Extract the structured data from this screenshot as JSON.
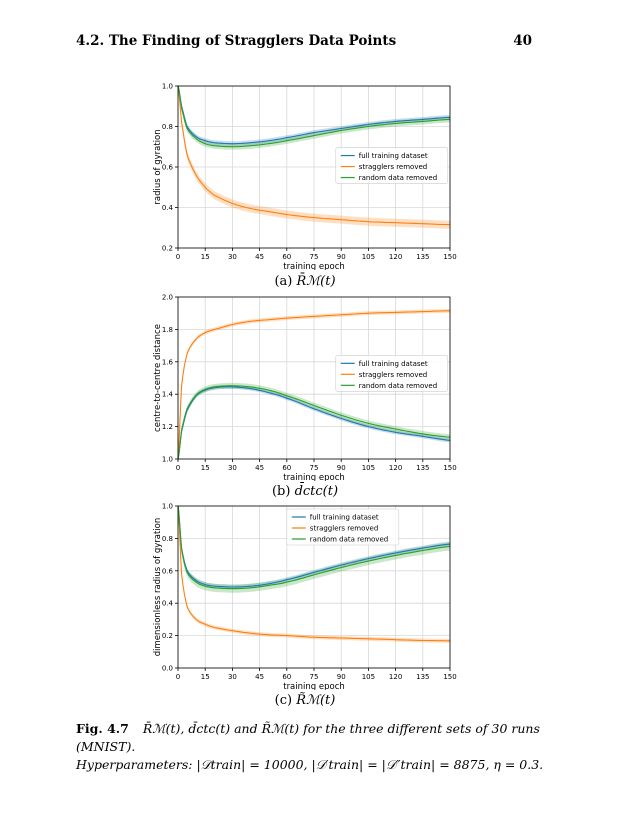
{
  "header": {
    "section": "4.2.   The Finding of Stragglers Data Points",
    "page": "40"
  },
  "colors": {
    "full": "#1f77b4",
    "stragglers": "#ff7f0e",
    "random": "#2ca02c"
  },
  "charts": [
    {
      "id": "a",
      "caption_math": "R̄ℳ(t)",
      "caption_label": "(a)",
      "chart_data": {
        "type": "line",
        "xlabel": "training epoch",
        "ylabel": "radius of gyration",
        "xlim": [
          0,
          150
        ],
        "ylim": [
          0.2,
          1.0
        ],
        "xticks": [
          0,
          15,
          30,
          45,
          60,
          75,
          90,
          105,
          120,
          135,
          150
        ],
        "yticks": [
          0.2,
          0.4,
          0.6,
          0.8,
          1.0
        ],
        "ytick_labels": [
          "0.2",
          "0.4",
          "0.6",
          "0.8",
          "1.0"
        ],
        "legend": "center-right",
        "series": [
          {
            "name": "full training dataset",
            "color": "#1f77b4",
            "x": [
              0,
              2,
              5,
              10,
              15,
              20,
              30,
              40,
              50,
              60,
              75,
              90,
              105,
              120,
              135,
              150
            ],
            "y": [
              1.0,
              0.9,
              0.8,
              0.75,
              0.73,
              0.72,
              0.715,
              0.72,
              0.73,
              0.745,
              0.77,
              0.79,
              0.81,
              0.825,
              0.835,
              0.845
            ],
            "band": 0.012
          },
          {
            "name": "stragglers removed",
            "color": "#ff7f0e",
            "x": [
              0,
              2,
              5,
              10,
              15,
              20,
              30,
              40,
              50,
              60,
              75,
              90,
              105,
              120,
              135,
              150
            ],
            "y": [
              1.0,
              0.82,
              0.66,
              0.56,
              0.5,
              0.46,
              0.42,
              0.395,
              0.38,
              0.365,
              0.35,
              0.34,
              0.33,
              0.325,
              0.32,
              0.315
            ],
            "band": 0.02
          },
          {
            "name": "random data removed",
            "color": "#2ca02c",
            "x": [
              0,
              2,
              5,
              10,
              15,
              20,
              30,
              40,
              50,
              60,
              75,
              90,
              105,
              120,
              135,
              150
            ],
            "y": [
              1.0,
              0.89,
              0.79,
              0.74,
              0.715,
              0.705,
              0.7,
              0.705,
              0.715,
              0.73,
              0.755,
              0.78,
              0.8,
              0.815,
              0.825,
              0.835
            ],
            "band": 0.015
          }
        ]
      }
    },
    {
      "id": "b",
      "caption_math": "d̄ctc(t)",
      "caption_label": "(b)",
      "chart_data": {
        "type": "line",
        "xlabel": "training epoch",
        "ylabel": "centre-to-centre distance",
        "xlim": [
          0,
          150
        ],
        "ylim": [
          1.0,
          2.0
        ],
        "xticks": [
          0,
          15,
          30,
          45,
          60,
          75,
          90,
          105,
          120,
          135,
          150
        ],
        "yticks": [
          1.0,
          1.2,
          1.4,
          1.6,
          1.8,
          2.0
        ],
        "ytick_labels": [
          "1.0",
          "1.2",
          "1.4",
          "1.6",
          "1.8",
          "2.0"
        ],
        "legend": "center-right",
        "series": [
          {
            "name": "full training dataset",
            "color": "#1f77b4",
            "x": [
              0,
              2,
              5,
              10,
              15,
              20,
              25,
              30,
              40,
              50,
              60,
              75,
              90,
              105,
              120,
              135,
              150
            ],
            "y": [
              1.0,
              1.17,
              1.3,
              1.39,
              1.425,
              1.44,
              1.445,
              1.445,
              1.435,
              1.41,
              1.375,
              1.31,
              1.25,
              1.2,
              1.165,
              1.14,
              1.115
            ],
            "band": 0.012
          },
          {
            "name": "stragglers removed",
            "color": "#ff7f0e",
            "x": [
              0,
              2,
              5,
              10,
              15,
              20,
              30,
              40,
              50,
              60,
              75,
              90,
              105,
              120,
              135,
              150
            ],
            "y": [
              1.0,
              1.45,
              1.65,
              1.74,
              1.78,
              1.8,
              1.83,
              1.85,
              1.86,
              1.87,
              1.88,
              1.89,
              1.9,
              1.905,
              1.91,
              1.915
            ],
            "band": 0.012
          },
          {
            "name": "random data removed",
            "color": "#2ca02c",
            "x": [
              0,
              2,
              5,
              10,
              15,
              20,
              25,
              30,
              40,
              50,
              60,
              75,
              90,
              105,
              120,
              135,
              150
            ],
            "y": [
              1.0,
              1.18,
              1.31,
              1.395,
              1.43,
              1.445,
              1.45,
              1.452,
              1.445,
              1.425,
              1.39,
              1.33,
              1.27,
              1.22,
              1.185,
              1.155,
              1.135
            ],
            "band": 0.018
          }
        ]
      }
    },
    {
      "id": "c",
      "caption_math": "R̃ℳ(t)",
      "caption_label": "(c)",
      "chart_data": {
        "type": "line",
        "xlabel": "training epoch",
        "ylabel": "dimensionless radius of gyration",
        "xlim": [
          0,
          150
        ],
        "ylim": [
          0.0,
          1.0
        ],
        "xticks": [
          0,
          15,
          30,
          45,
          60,
          75,
          90,
          105,
          120,
          135,
          150
        ],
        "yticks": [
          0.0,
          0.2,
          0.4,
          0.6,
          0.8,
          1.0
        ],
        "ytick_labels": [
          "0.0",
          "0.2",
          "0.4",
          "0.6",
          "0.8",
          "1.0"
        ],
        "legend": "top-center",
        "series": [
          {
            "name": "full training dataset",
            "color": "#1f77b4",
            "x": [
              0,
              2,
              5,
              10,
              15,
              20,
              30,
              40,
              50,
              60,
              75,
              90,
              105,
              120,
              135,
              150
            ],
            "y": [
              1.0,
              0.74,
              0.6,
              0.54,
              0.515,
              0.505,
              0.5,
              0.505,
              0.52,
              0.545,
              0.59,
              0.635,
              0.675,
              0.71,
              0.74,
              0.765
            ],
            "band": 0.015
          },
          {
            "name": "stragglers removed",
            "color": "#ff7f0e",
            "x": [
              0,
              2,
              5,
              10,
              15,
              20,
              30,
              40,
              50,
              60,
              75,
              90,
              105,
              120,
              135,
              150
            ],
            "y": [
              1.0,
              0.58,
              0.38,
              0.3,
              0.27,
              0.25,
              0.23,
              0.215,
              0.205,
              0.2,
              0.19,
              0.185,
              0.18,
              0.175,
              0.17,
              0.168
            ],
            "band": 0.012
          },
          {
            "name": "random data removed",
            "color": "#2ca02c",
            "x": [
              0,
              2,
              5,
              10,
              15,
              20,
              30,
              40,
              50,
              60,
              75,
              90,
              105,
              120,
              135,
              150
            ],
            "y": [
              1.0,
              0.73,
              0.59,
              0.53,
              0.505,
              0.495,
              0.49,
              0.495,
              0.51,
              0.53,
              0.575,
              0.62,
              0.66,
              0.695,
              0.725,
              0.75
            ],
            "band": 0.025
          }
        ]
      }
    }
  ],
  "figure_caption": {
    "label": "Fig. 4.7",
    "line1": "R̄ℳ(t), d̄ctc(t) and R̃ℳ(t) for the three different sets of 30 runs (MNIST).",
    "line2": "Hyperparameters: |𝒟train| = 10000, |𝒟′train| = |𝒟″train| = 8875, η = 0.3."
  }
}
